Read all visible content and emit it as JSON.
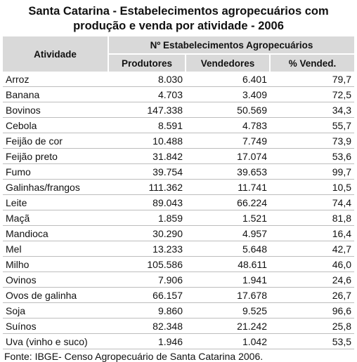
{
  "title_line1": "Santa Catarina - Estabelecimentos agropecuários com",
  "title_line2": "produção e venda por atividade - 2006",
  "headers": {
    "atividade": "Atividade",
    "group": "Nº Estabelecimentos Agropecuários",
    "produtores": "Produtores",
    "vendedores": "Vendedores",
    "pct": "% Vended."
  },
  "rows": [
    {
      "atividade": "Arroz",
      "produtores": "8.030",
      "vendedores": "6.401",
      "pct": "79,7"
    },
    {
      "atividade": "Banana",
      "produtores": "4.703",
      "vendedores": "3.409",
      "pct": "72,5"
    },
    {
      "atividade": "Bovinos",
      "produtores": "147.338",
      "vendedores": "50.569",
      "pct": "34,3"
    },
    {
      "atividade": "Cebola",
      "produtores": "8.591",
      "vendedores": "4.783",
      "pct": "55,7"
    },
    {
      "atividade": "Feijão de cor",
      "produtores": "10.488",
      "vendedores": "7.749",
      "pct": "73,9"
    },
    {
      "atividade": "Feijão preto",
      "produtores": "31.842",
      "vendedores": "17.074",
      "pct": "53,6"
    },
    {
      "atividade": "Fumo",
      "produtores": "39.754",
      "vendedores": "39.653",
      "pct": "99,7"
    },
    {
      "atividade": "Galinhas/frangos",
      "produtores": "111.362",
      "vendedores": "11.741",
      "pct": "10,5"
    },
    {
      "atividade": "Leite",
      "produtores": "89.043",
      "vendedores": "66.224",
      "pct": "74,4"
    },
    {
      "atividade": "Maçã",
      "produtores": "1.859",
      "vendedores": "1.521",
      "pct": "81,8"
    },
    {
      "atividade": "Mandioca",
      "produtores": "30.290",
      "vendedores": "4.957",
      "pct": "16,4"
    },
    {
      "atividade": "Mel",
      "produtores": "13.233",
      "vendedores": "5.648",
      "pct": "42,7"
    },
    {
      "atividade": "Milho",
      "produtores": "105.586",
      "vendedores": "48.611",
      "pct": "46,0"
    },
    {
      "atividade": "Ovinos",
      "produtores": "7.906",
      "vendedores": "1.941",
      "pct": "24,6"
    },
    {
      "atividade": "Ovos de galinha",
      "produtores": "66.157",
      "vendedores": "17.678",
      "pct": "26,7"
    },
    {
      "atividade": "Soja",
      "produtores": "9.860",
      "vendedores": "9.525",
      "pct": "96,6"
    },
    {
      "atividade": "Suínos",
      "produtores": "82.348",
      "vendedores": "21.242",
      "pct": "25,8"
    },
    {
      "atividade": "Uva (vinho e suco)",
      "produtores": "1.946",
      "vendedores": "1.042",
      "pct": "53,5"
    }
  ],
  "source": "Fonte: IBGE- Censo Agropecuário de Santa Catarina 2006."
}
